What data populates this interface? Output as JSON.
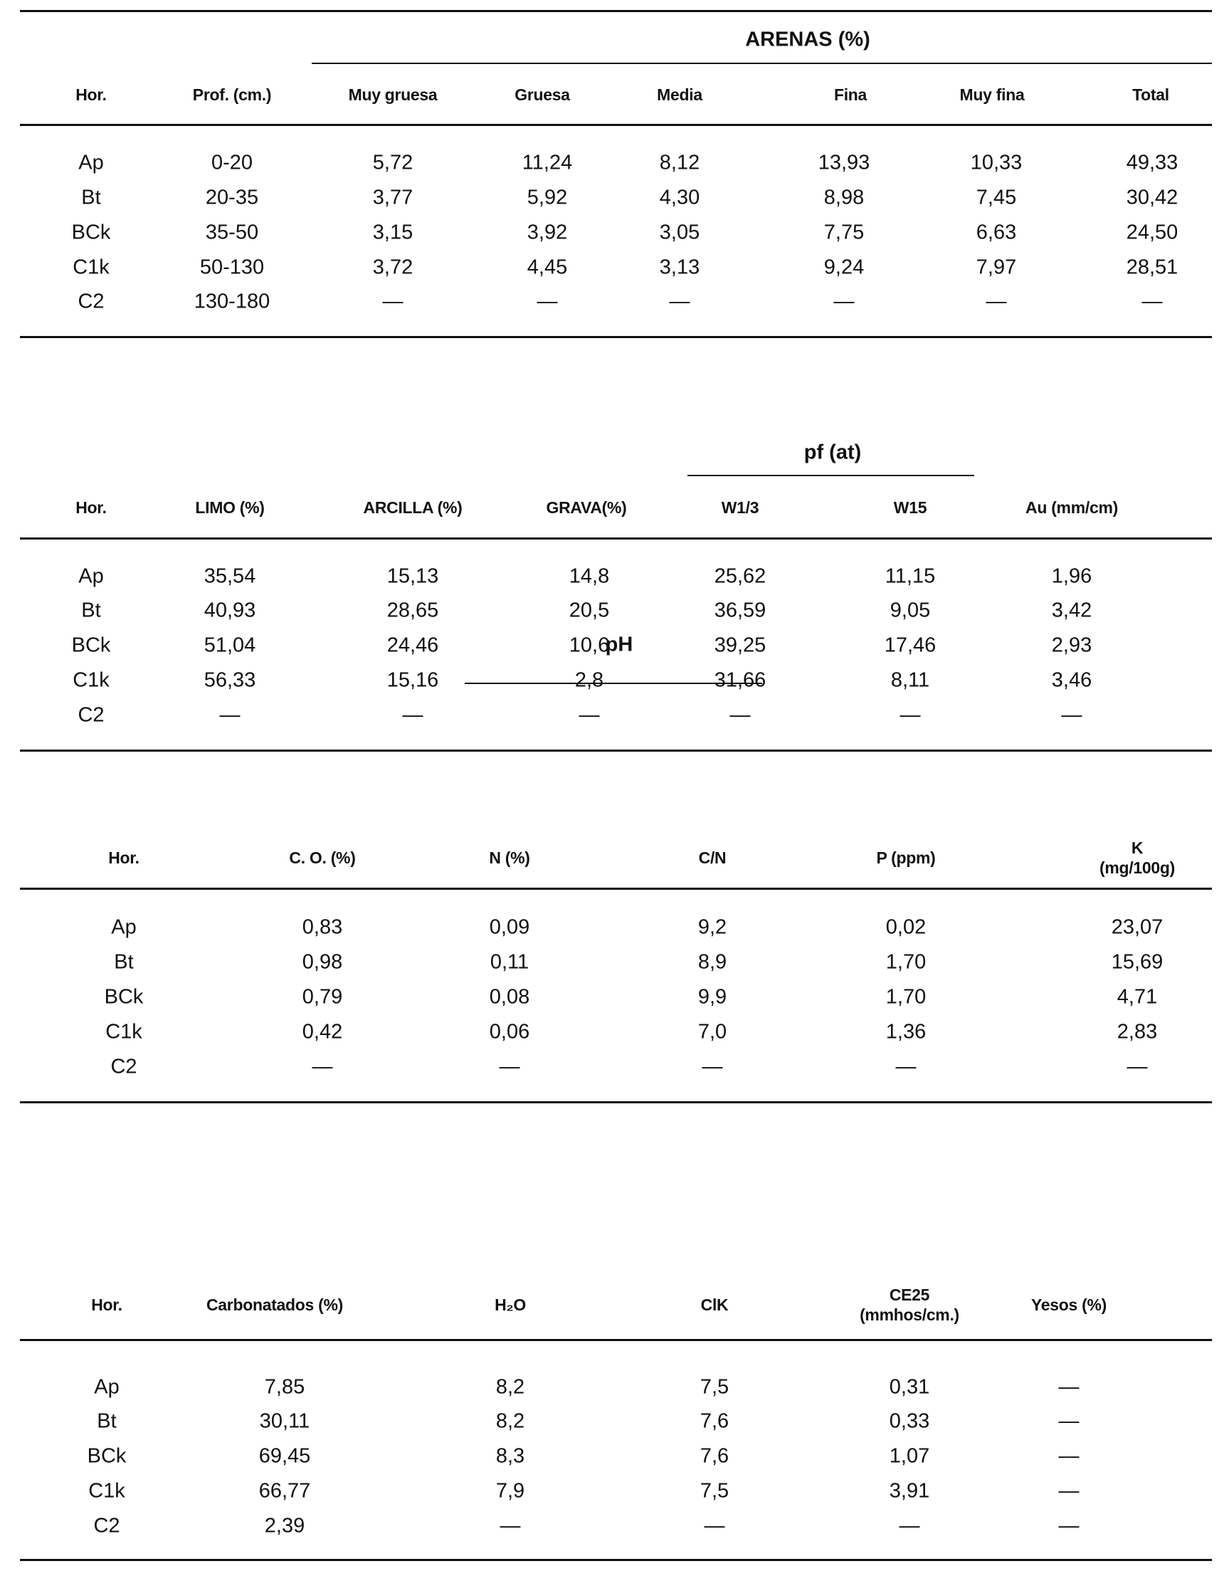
{
  "tables": [
    {
      "group_header": "ARENAS (%)",
      "columns": [
        "Hor.",
        "Prof. (cm.)",
        "Muy gruesa",
        "Gruesa",
        "Media",
        "Fina",
        "Muy fina",
        "Total"
      ],
      "rows": [
        [
          "Ap",
          "0-20",
          "5,72",
          "11,24",
          "8,12",
          "13,93",
          "10,33",
          "49,33"
        ],
        [
          "Bt",
          "20-35",
          "3,77",
          "5,92",
          "4,30",
          "8,98",
          "7,45",
          "30,42"
        ],
        [
          "BCk",
          "35-50",
          "3,15",
          "3,92",
          "3,05",
          "7,75",
          "6,63",
          "24,50"
        ],
        [
          "C1k",
          "50-130",
          "3,72",
          "4,45",
          "3,13",
          "9,24",
          "7,97",
          "28,51"
        ],
        [
          "C2",
          "130-180",
          "—",
          "—",
          "—",
          "—",
          "—",
          "—"
        ]
      ]
    },
    {
      "group_header": "pf (at)",
      "columns": [
        "Hor.",
        "LIMO (%)",
        "ARCILLA (%)",
        "GRAVA(%)",
        "W1/3",
        "W15",
        "Au (mm/cm)"
      ],
      "rows": [
        [
          "Ap",
          "35,54",
          "15,13",
          "14,8",
          "25,62",
          "11,15",
          "1,96"
        ],
        [
          "Bt",
          "40,93",
          "28,65",
          "20,5",
          "36,59",
          "9,05",
          "3,42"
        ],
        [
          "BCk",
          "51,04",
          "24,46",
          "10,6",
          "39,25",
          "17,46",
          "2,93"
        ],
        [
          "C1k",
          "56,33",
          "15,16",
          "2,8",
          "31,66",
          "8,11",
          "3,46"
        ],
        [
          "C2",
          "—",
          "—",
          "—",
          "—",
          "—",
          "—"
        ]
      ]
    },
    {
      "group_header": "",
      "columns": [
        "Hor.",
        "C. O. (%)",
        "N (%)",
        "C/N",
        "P (ppm)",
        "K (mg/100g)"
      ],
      "rows": [
        [
          "Ap",
          "0,83",
          "0,09",
          "9,2",
          "0,02",
          "23,07"
        ],
        [
          "Bt",
          "0,98",
          "0,11",
          "8,9",
          "1,70",
          "15,69"
        ],
        [
          "BCk",
          "0,79",
          "0,08",
          "9,9",
          "1,70",
          "4,71"
        ],
        [
          "C1k",
          "0,42",
          "0,06",
          "7,0",
          "1,36",
          "2,83"
        ],
        [
          "C2",
          "—",
          "—",
          "—",
          "—",
          "—"
        ]
      ]
    },
    {
      "group_header": "pH",
      "columns": [
        "Hor.",
        "Carbonatados (%)",
        "H₂O",
        "ClK",
        "CE25\n(mmhos/cm.)",
        "Yesos (%)"
      ],
      "rows": [
        [
          "Ap",
          "7,85",
          "8,2",
          "7,5",
          "0,31",
          "—"
        ],
        [
          "Bt",
          "30,11",
          "8,2",
          "7,6",
          "0,33",
          "—"
        ],
        [
          "BCk",
          "69,45",
          "8,3",
          "7,6",
          "1,07",
          "—"
        ],
        [
          "C1k",
          "66,77",
          "7,9",
          "7,5",
          "3,91",
          "—"
        ],
        [
          "C2",
          "2,39",
          "—",
          "—",
          "—",
          "—"
        ]
      ]
    }
  ]
}
